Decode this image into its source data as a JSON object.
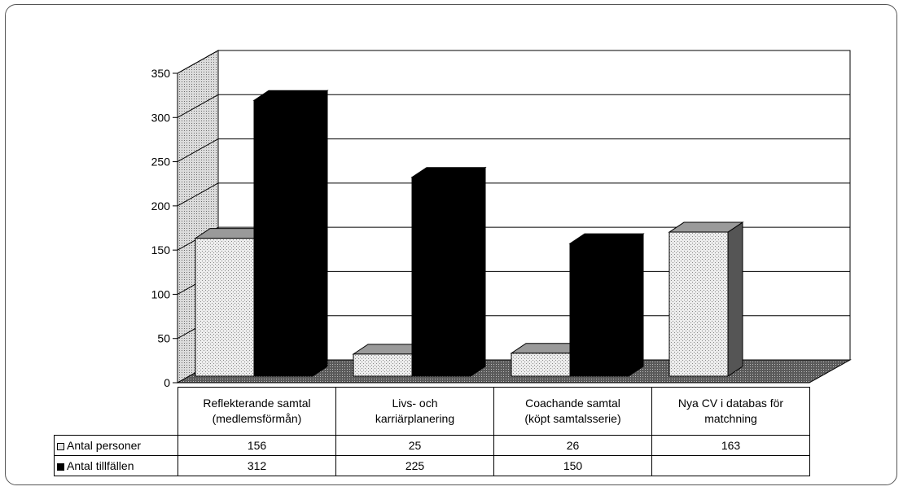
{
  "colors": {
    "light_series": "#e8e8e8",
    "dark_series": "#000000",
    "wall": "#ffffff",
    "floor": "#666666"
  },
  "chart_data": {
    "type": "bar",
    "title": "",
    "xlabel": "",
    "ylabel": "",
    "ylim": [
      0,
      350
    ],
    "yticks": [
      "0",
      "50",
      "100",
      "150",
      "200",
      "250",
      "300",
      "350"
    ],
    "grid": true,
    "categories": [
      [
        "Reflekterande samtal",
        "(medlemsförmån)"
      ],
      [
        "Livs- och",
        "karriärplanering"
      ],
      [
        "Coachande samtal",
        "(köpt samtalsserie)"
      ],
      [
        "Nya CV i databas för",
        "matchning"
      ]
    ],
    "series": [
      {
        "name": "Antal personer",
        "values": [
          156,
          25,
          26,
          163
        ],
        "labels": [
          "156",
          "25",
          "26",
          "163"
        ]
      },
      {
        "name": "Antal tillfällen",
        "values": [
          312,
          225,
          150,
          null
        ],
        "labels": [
          "312",
          "225",
          "150",
          ""
        ]
      }
    ],
    "legend_placement": "data-table-left"
  }
}
